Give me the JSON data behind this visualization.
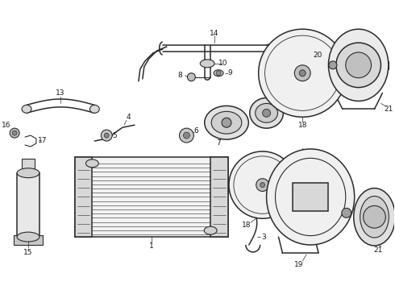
{
  "bg_color": "#ffffff",
  "line_color": "#2a2a2a",
  "label_color": "#1a1a1a",
  "fig_width": 4.9,
  "fig_height": 3.6,
  "dpi": 100
}
